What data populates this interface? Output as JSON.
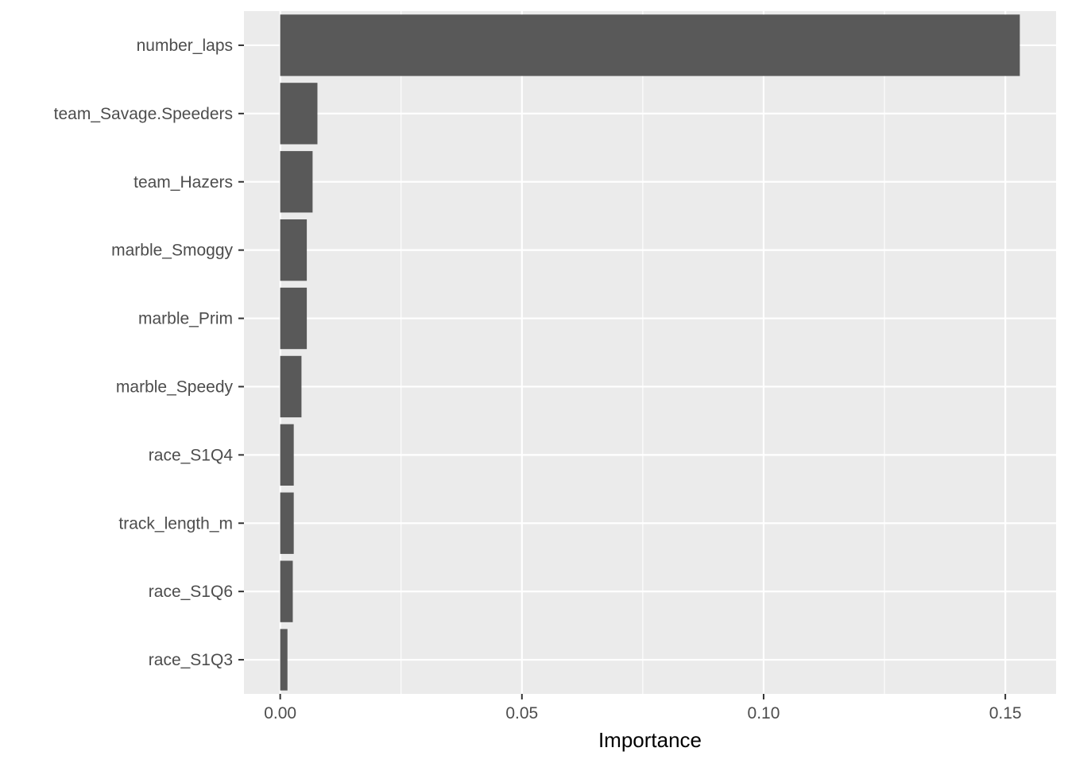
{
  "chart_data": {
    "type": "bar",
    "orientation": "horizontal",
    "title": "",
    "xlabel": "Importance",
    "ylabel": "",
    "categories": [
      "number_laps",
      "team_Savage.Speeders",
      "team_Hazers",
      "marble_Smoggy",
      "marble_Prim",
      "marble_Speedy",
      "race_S1Q4",
      "track_length_m",
      "race_S1Q6",
      "race_S1Q3"
    ],
    "values": [
      0.153,
      0.0077,
      0.0067,
      0.0055,
      0.0055,
      0.0044,
      0.0028,
      0.0028,
      0.0026,
      0.0015
    ],
    "xlim": [
      -0.0075,
      0.1605
    ],
    "x_ticks": [
      0.0,
      0.05,
      0.1,
      0.15
    ],
    "x_tick_labels": [
      "0.00",
      "0.05",
      "0.10",
      "0.15"
    ],
    "grid": true,
    "legend": "none",
    "colors": {
      "bar": "#595959",
      "panel_background": "#ebebeb",
      "grid_major": "#ffffff",
      "tick_text": "#4d4d4d",
      "tick_mark": "#333333"
    }
  }
}
